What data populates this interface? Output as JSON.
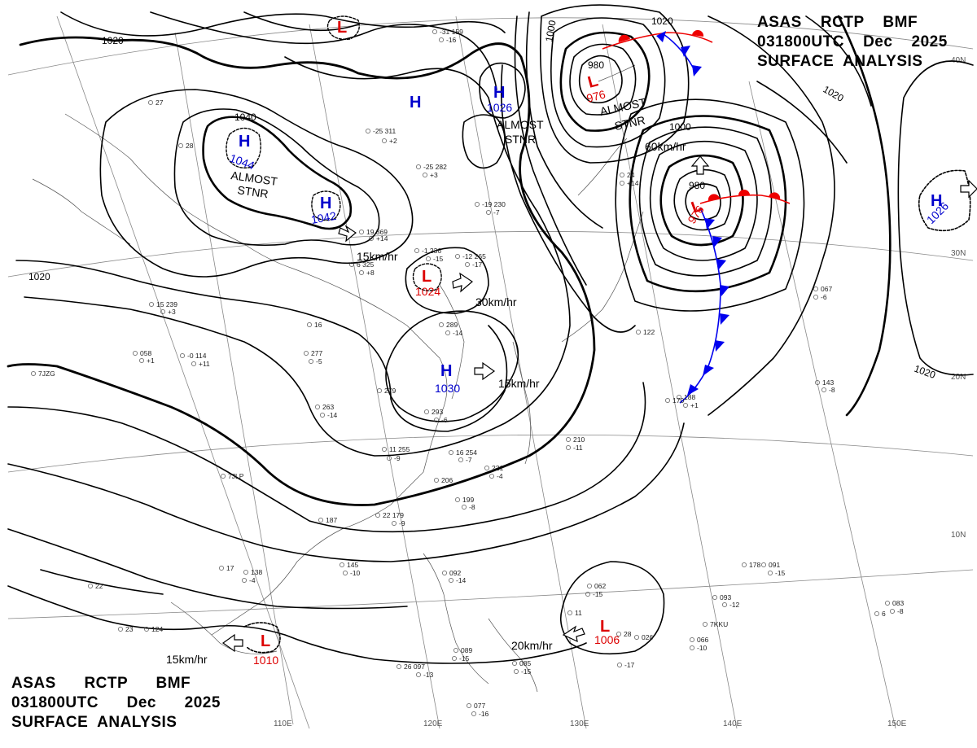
{
  "header": {
    "line1": "ASAS    RCTP    BMF",
    "line2": "031800UTC    Dec    2025",
    "line3": "SURFACE  ANALYSIS"
  },
  "footer": {
    "line1": "ASAS      RCTP      BMF",
    "line2": "031800UTC      Dec      2025",
    "line3": "SURFACE  ANALYSIS"
  },
  "grid_labels": {
    "longitudes": [
      "110E",
      "120E",
      "130E",
      "140E",
      "150E"
    ],
    "latitudes": [
      "40N",
      "30N",
      "20N",
      "10N"
    ]
  },
  "isobar_labels": [
    "1020",
    "1040",
    "1000",
    "1020",
    "1020",
    "980",
    "980",
    "1000",
    "1020",
    "1020"
  ],
  "pressure_centers": [
    {
      "type": "H",
      "value": "",
      "color": "#0000cc"
    },
    {
      "type": "H",
      "value": "1044",
      "color": "#0000cc"
    },
    {
      "type": "H",
      "value": "1042",
      "color": "#0000cc"
    },
    {
      "type": "H",
      "value": "1026",
      "color": "#0000cc"
    },
    {
      "type": "H",
      "value": "1030",
      "color": "#0000cc"
    },
    {
      "type": "H",
      "value": "1026",
      "color": "#0000cc"
    },
    {
      "type": "L",
      "value": "",
      "color": "#dd0000"
    },
    {
      "type": "L",
      "value": "976",
      "color": "#dd0000"
    },
    {
      "type": "L",
      "value": "976",
      "color": "#dd0000"
    },
    {
      "type": "L",
      "value": "1024",
      "color": "#dd0000"
    },
    {
      "type": "L",
      "value": "1010",
      "color": "#dd0000"
    },
    {
      "type": "L",
      "value": "1006",
      "color": "#dd0000"
    }
  ],
  "movement_notes": [
    "15km/hr",
    "30km/hr",
    "15km/hr",
    "60km/hr",
    "20km/hr",
    "15km/hr"
  ],
  "stationary_notes": [
    {
      "line1": "ALMOST",
      "line2": "STNR"
    },
    {
      "line1": "ALMOST",
      "line2": "STNR"
    },
    {
      "line1": "ALMOST",
      "line2": "STNR"
    }
  ],
  "station_reports": [
    "-31 159",
    "-16",
    "-25 311",
    "+2",
    "-25 282",
    "+3",
    "-19 230",
    "-7",
    "-12 265",
    "-17",
    "19 369",
    "+14",
    "6 325",
    "+8",
    "-1 236",
    "-15",
    "289",
    "-14",
    "15 239",
    "+3",
    "058",
    "+1",
    "-0 114",
    "+11",
    "277",
    "-5",
    "263",
    "-14",
    "279",
    "293",
    "-6",
    "11 255",
    "-9",
    "16 254",
    "-7",
    "221",
    "-4",
    "199",
    "-8",
    "206",
    "22 179",
    "-9",
    "187",
    "145",
    "-10",
    "138",
    "-4",
    "124",
    "26 097",
    "-13",
    "089",
    "-15",
    "085",
    "-15",
    "077",
    "-16",
    "092",
    "-14",
    "062",
    "-15",
    "026",
    "066",
    "-10",
    "093",
    "-12",
    "091",
    "-15",
    "083",
    "-8",
    "143",
    "-8",
    "067",
    "-6",
    "122",
    "28",
    "210",
    "-11",
    "188",
    "+1",
    "24",
    "+14",
    "11",
    "-17",
    "7KKU",
    "7JZG",
    "7JLP",
    "16",
    "170",
    "17",
    "178",
    "6",
    "22",
    "23",
    "27",
    "28"
  ],
  "colors": {
    "high": "#0000cc",
    "low": "#dd0000",
    "cold_front": "#0000ee",
    "warm_front": "#ee0000",
    "isobar": "#000000",
    "coast": "#333333",
    "grid": "#777777"
  }
}
